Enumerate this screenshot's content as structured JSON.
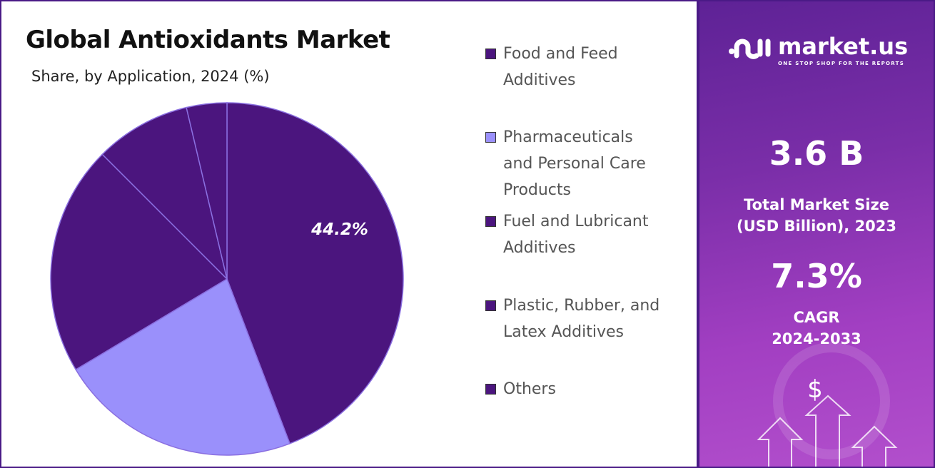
{
  "chart_data": {
    "type": "pie",
    "title": "Global Antioxidants Market",
    "subtitle": "Share, by Application, 2024 (%)",
    "categories": [
      "Food and Feed Additives",
      "Pharmaceuticals and Personal Care Products",
      "Fuel and Lubricant Additives",
      "Plastic, Rubber, and Latex Additives",
      "Others"
    ],
    "values": [
      44.2,
      22.2,
      21.1,
      8.8,
      3.7
    ],
    "colors": [
      "#4b157e",
      "#9a90fb",
      "#4b157e",
      "#4b157e",
      "#4b157e"
    ],
    "data_labels": [
      "44.2%",
      "",
      "",
      "",
      ""
    ],
    "legend_position": "right"
  },
  "legend": [
    {
      "lines": [
        "Food and Feed",
        "Additives"
      ],
      "color": "#4b157e"
    },
    {
      "lines": [
        "Pharmaceuticals",
        "and Personal Care",
        "Products"
      ],
      "color": "#9a90fb"
    },
    {
      "lines": [
        "Fuel and Lubricant",
        "Additives"
      ],
      "color": "#4b157e"
    },
    {
      "lines": [
        "Plastic, Rubber, and",
        "Latex Additives"
      ],
      "color": "#4b157e"
    },
    {
      "lines": [
        "Others"
      ],
      "color": "#4b157e"
    }
  ],
  "sidebar": {
    "brand": "market.us",
    "tagline": "ONE STOP SHOP FOR THE REPORTS",
    "market_size": "3.6 B",
    "market_size_label_1": "Total Market Size",
    "market_size_label_2": "(USD Billion), 2023",
    "cagr": "7.3%",
    "cagr_label_1": "CAGR",
    "cagr_label_2": "2024-2033",
    "dollar": "$"
  }
}
